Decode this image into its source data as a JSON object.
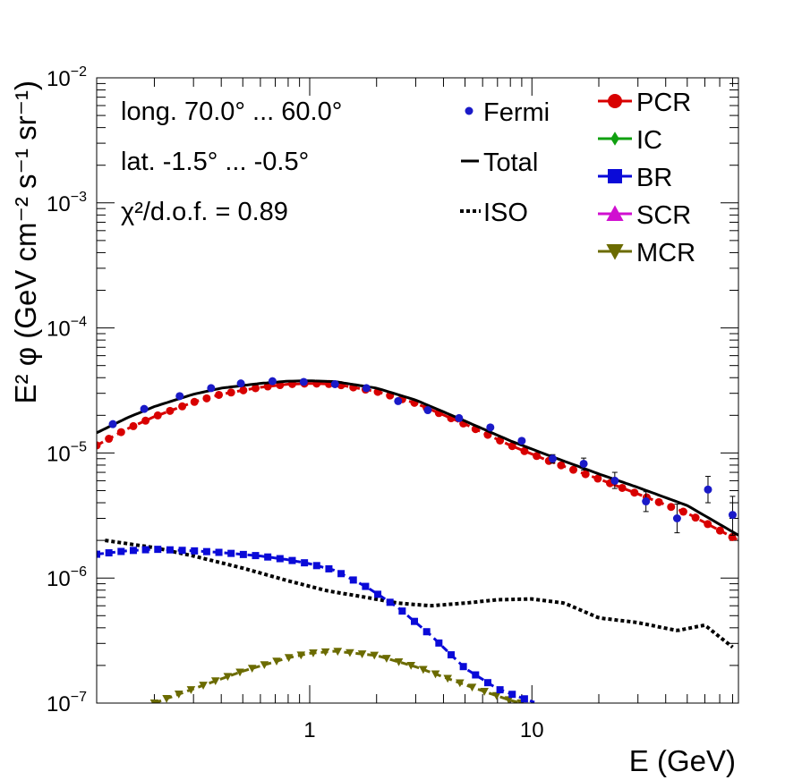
{
  "chart_data": {
    "type": "scatter",
    "title": "",
    "xlabel": "E (GeV)",
    "ylabel": "E² φ (GeV cm⁻² s⁻¹ sr⁻¹)",
    "xscale": "log",
    "yscale": "log",
    "xlim": [
      0.11,
      85
    ],
    "ylim": [
      1e-07,
      0.01
    ],
    "x_tick_labels": [
      {
        "value": 1,
        "label": "1"
      },
      {
        "value": 10,
        "label": "10"
      }
    ],
    "y_tick_labels": [
      {
        "value": 1e-07,
        "base": "10",
        "exp": "−7"
      },
      {
        "value": 1e-06,
        "base": "10",
        "exp": "−6"
      },
      {
        "value": 1e-05,
        "base": "10",
        "exp": "−5"
      },
      {
        "value": 0.0001,
        "base": "10",
        "exp": "−4"
      },
      {
        "value": 0.001,
        "base": "10",
        "exp": "−3"
      },
      {
        "value": 0.01,
        "base": "10",
        "exp": "−2"
      }
    ],
    "annotations": [
      "long. 70.0° ... 60.0°",
      "lat. -1.5° ... -0.5°",
      "χ²/d.o.f. = 0.89"
    ],
    "legend_left": [
      {
        "label": "Fermi",
        "symbol": "dot",
        "color": "#1a1ac8"
      },
      {
        "label": "Total",
        "symbol": "line",
        "color": "#000000"
      },
      {
        "label": "ISO",
        "symbol": "dotted",
        "color": "#000000"
      }
    ],
    "legend_right": [
      {
        "label": "PCR",
        "symbol": "circle",
        "color": "#d80000"
      },
      {
        "label": "IC",
        "symbol": "diamond",
        "color": "#10a010"
      },
      {
        "label": "BR",
        "symbol": "square",
        "color": "#0a0ad8"
      },
      {
        "label": "SCR",
        "symbol": "triangle-up",
        "color": "#d010d0"
      },
      {
        "label": "MCR",
        "symbol": "triangle-down",
        "color": "#6b6b00"
      }
    ],
    "series": [
      {
        "name": "Fermi",
        "style": "points",
        "color": "#1a1ac8",
        "x": [
          0.13,
          0.18,
          0.26,
          0.36,
          0.49,
          0.68,
          0.94,
          1.3,
          1.8,
          2.5,
          3.4,
          4.7,
          6.5,
          9.0,
          12.4,
          17.1,
          23.6,
          32.6,
          45.0,
          62.0,
          80.0
        ],
        "y": [
          1.7e-05,
          2.25e-05,
          2.85e-05,
          3.3e-05,
          3.6e-05,
          3.75e-05,
          3.7e-05,
          3.55e-05,
          3.3e-05,
          2.6e-05,
          2.2e-05,
          1.9e-05,
          1.6e-05,
          1.25e-05,
          9e-06,
          8.2e-06,
          6e-06,
          4.1e-06,
          3e-06,
          5.1e-06,
          3.2e-06
        ],
        "y_err_low": [
          0,
          0,
          0,
          0,
          0,
          0,
          0,
          0,
          0,
          0,
          0,
          0,
          0,
          0,
          7e-07,
          9e-07,
          8e-07,
          7e-07,
          7e-07,
          1.1e-06,
          1e-06
        ],
        "y_err_high": [
          0,
          0,
          0,
          0,
          0,
          0,
          0,
          0,
          0,
          0,
          0,
          0,
          0,
          0,
          7e-07,
          9e-07,
          1e-06,
          8e-07,
          9e-07,
          1.4e-06,
          1.3e-06
        ]
      },
      {
        "name": "Total",
        "style": "solid",
        "color": "#000000",
        "x": [
          0.11,
          0.15,
          0.2,
          0.3,
          0.4,
          0.6,
          0.8,
          1.0,
          1.3,
          2.0,
          3.0,
          5.0,
          8.0,
          12,
          20,
          30,
          50,
          85
        ],
        "y": [
          1.45e-05,
          1.9e-05,
          2.35e-05,
          2.95e-05,
          3.3e-05,
          3.6e-05,
          3.75e-05,
          3.78e-05,
          3.72e-05,
          3.3e-05,
          2.65e-05,
          1.8e-05,
          1.25e-05,
          9.5e-06,
          6.8e-06,
          5.3e-06,
          3.8e-06,
          2.2e-06
        ]
      },
      {
        "name": "PCR",
        "style": "dashed-markers",
        "color": "#d80000",
        "x": [
          0.11,
          0.15,
          0.2,
          0.3,
          0.4,
          0.6,
          0.8,
          1.0,
          1.3,
          2.0,
          3.0,
          5.0,
          8.0,
          12,
          20,
          30,
          50,
          85
        ],
        "y": [
          1.15e-05,
          1.55e-05,
          1.95e-05,
          2.55e-05,
          2.95e-05,
          3.35e-05,
          3.55e-05,
          3.6e-05,
          3.55e-05,
          3.1e-05,
          2.5e-05,
          1.7e-05,
          1.15e-05,
          8.6e-06,
          6.2e-06,
          4.7e-06,
          3.3e-06,
          2e-06
        ]
      },
      {
        "name": "BR",
        "style": "dashed-markers",
        "color": "#0a0ad8",
        "x": [
          0.11,
          0.15,
          0.2,
          0.3,
          0.4,
          0.6,
          0.8,
          1.0,
          1.3,
          1.8,
          2.5,
          3.5,
          5.0,
          7.0,
          9.0,
          10.5
        ],
        "y": [
          1.55e-06,
          1.65e-06,
          1.7e-06,
          1.65e-06,
          1.6e-06,
          1.5e-06,
          1.4e-06,
          1.3e-06,
          1.15e-06,
          8.5e-07,
          5.8e-07,
          3.5e-07,
          1.9e-07,
          1.3e-07,
          1.1e-07,
          1e-07
        ]
      },
      {
        "name": "ISO",
        "style": "dotted",
        "color": "#000000",
        "x": [
          0.12,
          0.2,
          0.3,
          0.5,
          0.8,
          1.2,
          1.8,
          2.5,
          3.5,
          5.0,
          7.0,
          10,
          14,
          20,
          30,
          45,
          60,
          80
        ],
        "y": [
          2e-06,
          1.75e-06,
          1.5e-06,
          1.2e-06,
          9.5e-07,
          7.9e-07,
          7e-07,
          6.3e-07,
          6e-07,
          6.3e-07,
          6.7e-07,
          6.8e-07,
          6.3e-07,
          4.8e-07,
          4.4e-07,
          3.8e-07,
          4.2e-07,
          2.8e-07
        ]
      },
      {
        "name": "MCR",
        "style": "dashed-markers",
        "color": "#6b6b00",
        "x": [
          0.2,
          0.3,
          0.5,
          0.8,
          1.0,
          1.3,
          2.0,
          3.0,
          5.0,
          8.0,
          9.0
        ],
        "y": [
          1e-07,
          1.3e-07,
          1.8e-07,
          2.3e-07,
          2.5e-07,
          2.6e-07,
          2.4e-07,
          1.95e-07,
          1.4e-07,
          1.05e-07,
          1e-07
        ]
      }
    ]
  }
}
